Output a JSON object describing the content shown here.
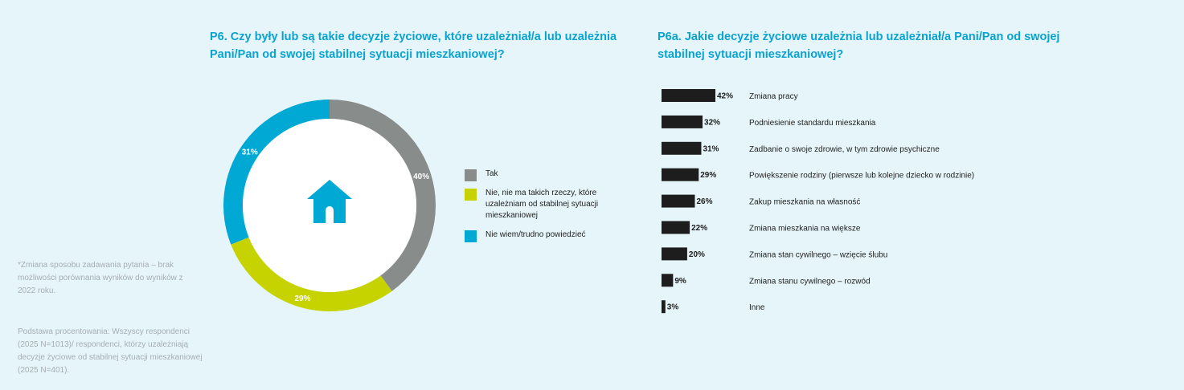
{
  "left_panel": {
    "title": "P6. Czy były lub są takie decyzje życiowe, które uzależniał/a lub uzależnia Pani/Pan od swojej stabilnej sytuacji mieszkaniowej?",
    "note_1": "*Zmiana sposobu zadawania pytania – brak możliwości porównania wyników do wyników z 2022 roku.",
    "note_2": "Podstawa procentowania: Wszyscy respondenci (2025 N=1013)/ respondenci, którzy uzależniają decyzje życiowe od stabilnej sytuacji mieszkaniowej (2025 N=401).",
    "center_icon": "house-icon"
  },
  "right_panel": {
    "title": "P6a. Jakie decyzje życiowe uzależnia lub uzależniał/a Pani/Pan od swojej stabilnej sytuacji mieszkaniowej?"
  },
  "chart_data": [
    {
      "type": "pie",
      "variant": "donut",
      "labels": [
        "Tak",
        "Nie, nie ma takich rzeczy, które uzależniam od stabilnej sytuacji mieszkaniowej",
        "Nie wiem/trudno powiedzieć"
      ],
      "values": [
        40,
        29,
        31
      ],
      "value_labels": [
        "40%",
        "29%",
        "31%"
      ],
      "colors": [
        "#888c8b",
        "#c6d300",
        "#00a9d4"
      ],
      "legend_position": "right"
    },
    {
      "type": "bar",
      "orientation": "horizontal",
      "categories": [
        "Zmiana pracy",
        "Podniesienie standardu mieszkania",
        "Zadbanie o swoje zdrowie, w tym zdrowie psychiczne",
        "Powiększenie rodziny (pierwsze lub kolejne dziecko w rodzinie)",
        "Zakup mieszkania na własność",
        "Zmiana mieszkania na większe",
        "Zmiana stan cywilnego – wzięcie ślubu",
        "Zmiana stanu cywilnego – rozwód",
        "Inne"
      ],
      "values": [
        42,
        32,
        31,
        29,
        26,
        22,
        20,
        9,
        3
      ],
      "value_labels": [
        "42%",
        "32%",
        "31%",
        "29%",
        "26%",
        "22%",
        "20%",
        "9%",
        "3%"
      ],
      "color": "#1d1d1d"
    }
  ]
}
